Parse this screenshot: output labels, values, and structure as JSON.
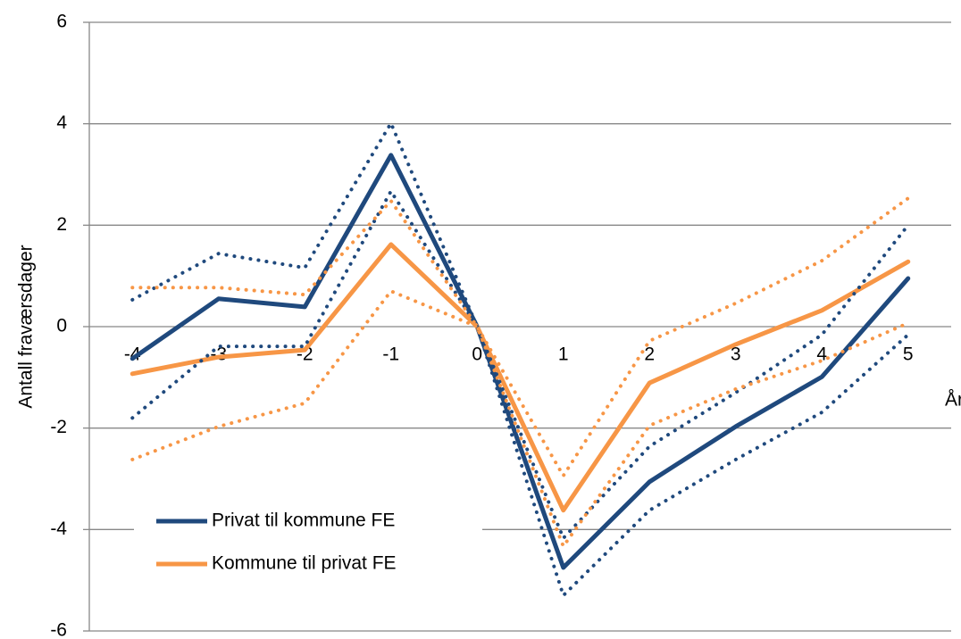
{
  "chart_data": {
    "type": "line",
    "x_label": "År",
    "y_label": "Antall fraværsdager",
    "categories": [
      "-4",
      "-3",
      "-2",
      "-1",
      "0",
      "1",
      "2",
      "3",
      "4",
      "5"
    ],
    "ylim": [
      -6,
      6
    ],
    "yticks": [
      -6,
      -4,
      -2,
      0,
      2,
      4,
      6
    ],
    "grid": true,
    "legend": "lower left",
    "series": [
      {
        "name": "Privat til kommune FE",
        "color": "#1F497D",
        "style": "solid",
        "values": [
          -0.63,
          0.55,
          0.39,
          3.38,
          0,
          -4.75,
          -3.06,
          -1.97,
          -0.99,
          0.95
        ]
      },
      {
        "name": "Kommune til privat FE",
        "color": "#F79646",
        "style": "solid",
        "values": [
          -0.93,
          -0.6,
          -0.46,
          1.62,
          0,
          -3.62,
          -1.11,
          -0.35,
          0.32,
          1.28
        ]
      },
      {
        "color": "#1F497D",
        "style": "dotted",
        "values": [
          0.53,
          1.44,
          1.16,
          4.01,
          0,
          -4.17,
          -2.36,
          -1.3,
          -0.16,
          2.0
        ]
      },
      {
        "color": "#1F497D",
        "style": "dotted",
        "values": [
          -1.8,
          -0.39,
          -0.39,
          2.67,
          0,
          -5.3,
          -3.62,
          -2.62,
          -1.69,
          -0.16
        ]
      },
      {
        "color": "#F79646",
        "style": "dotted",
        "values": [
          0.77,
          0.77,
          0.63,
          2.48,
          0,
          -2.94,
          -0.28,
          0.46,
          1.3,
          2.53
        ]
      },
      {
        "color": "#F79646",
        "style": "dotted",
        "values": [
          -2.62,
          -1.97,
          -1.51,
          0.7,
          0,
          -4.33,
          -1.95,
          -1.23,
          -0.67,
          0.07
        ]
      }
    ]
  }
}
